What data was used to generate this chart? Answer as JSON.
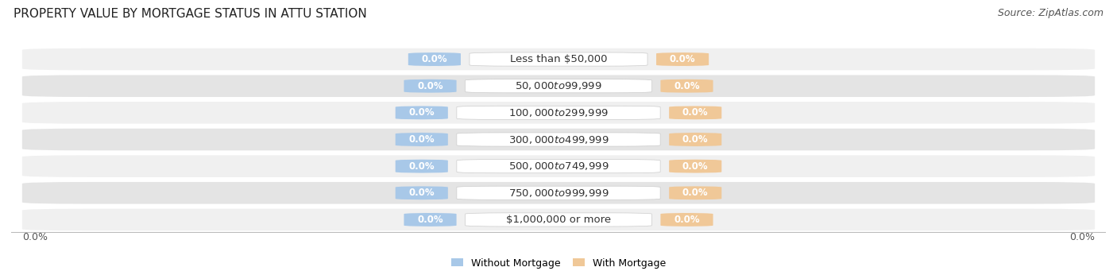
{
  "title": "PROPERTY VALUE BY MORTGAGE STATUS IN ATTU STATION",
  "source": "Source: ZipAtlas.com",
  "categories": [
    "Less than $50,000",
    "$50,000 to $99,999",
    "$100,000 to $299,999",
    "$300,000 to $499,999",
    "$500,000 to $749,999",
    "$750,000 to $999,999",
    "$1,000,000 or more"
  ],
  "without_mortgage": [
    0.0,
    0.0,
    0.0,
    0.0,
    0.0,
    0.0,
    0.0
  ],
  "with_mortgage": [
    0.0,
    0.0,
    0.0,
    0.0,
    0.0,
    0.0,
    0.0
  ],
  "without_mortgage_color": "#a8c8e8",
  "with_mortgage_color": "#f0c898",
  "row_bg_light": "#f0f0f0",
  "row_bg_dark": "#e4e4e4",
  "axis_label_left": "0.0%",
  "axis_label_right": "0.0%",
  "legend_without": "Without Mortgage",
  "legend_with": "With Mortgage",
  "title_fontsize": 11,
  "source_fontsize": 9,
  "category_fontsize": 9.5,
  "value_fontsize": 8.5,
  "background_color": "#ffffff"
}
